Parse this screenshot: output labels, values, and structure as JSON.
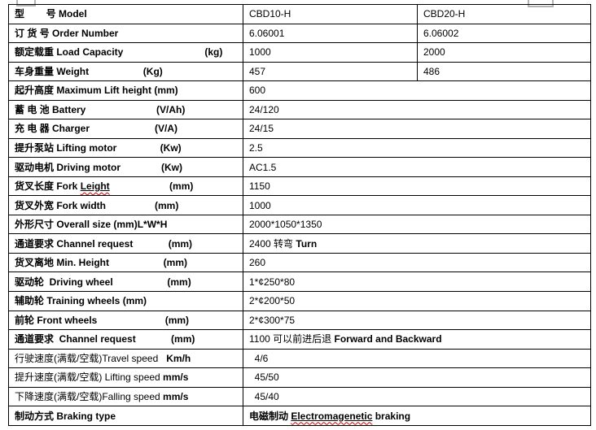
{
  "colors": {
    "background": "#ffffff",
    "table_border": "#000000",
    "text": "#000000",
    "spellcheck_underline": "#d40000",
    "fragment_gray": "#b3b3b3"
  },
  "table": {
    "rows": [
      {
        "id": "model",
        "label": [
          {
            "t": "型        号 Model",
            "b": true
          }
        ],
        "values": [
          [
            {
              "t": "CBD10-H"
            }
          ],
          [
            {
              "t": "CBD20-H"
            }
          ]
        ]
      },
      {
        "id": "order-number",
        "label": [
          {
            "t": "订 货 号 Order Number",
            "b": true
          }
        ],
        "values": [
          [
            {
              "t": "6.06001"
            }
          ],
          [
            {
              "t": "6.06002"
            }
          ]
        ]
      },
      {
        "id": "load-capacity",
        "label": [
          {
            "t": "额定载重 Load Capacity                              (kg)",
            "b": true
          }
        ],
        "values": [
          [
            {
              "t": "1000"
            }
          ],
          [
            {
              "t": "2000"
            }
          ]
        ]
      },
      {
        "id": "weight",
        "label": [
          {
            "t": "车身重量 Weight                    (Kg)",
            "b": true
          }
        ],
        "values": [
          [
            {
              "t": "457"
            }
          ],
          [
            {
              "t": "486"
            }
          ]
        ]
      },
      {
        "id": "max-lift-height",
        "label": [
          {
            "t": "起升高度 Maximum Lift height (mm)",
            "b": true
          }
        ],
        "values": [
          [
            {
              "t": "600"
            }
          ]
        ]
      },
      {
        "id": "battery",
        "label": [
          {
            "t": "蓄 电 池 Battery                          (V/Ah)",
            "b": true
          }
        ],
        "values": [
          [
            {
              "t": "24/120"
            }
          ]
        ]
      },
      {
        "id": "charger",
        "label": [
          {
            "t": "充 电 器 Charger                        (V/A)",
            "b": true
          }
        ],
        "values": [
          [
            {
              "t": "24/15"
            }
          ]
        ]
      },
      {
        "id": "lifting-motor",
        "label": [
          {
            "t": "提升泵站 Lifting motor                (Kw)",
            "b": true
          }
        ],
        "values": [
          [
            {
              "t": "2.5"
            }
          ]
        ]
      },
      {
        "id": "driving-motor",
        "label": [
          {
            "t": "驱动电机 Driving motor               (Kw)",
            "b": true
          }
        ],
        "values": [
          [
            {
              "t": "AC1.5"
            }
          ]
        ]
      },
      {
        "id": "fork-length",
        "label": [
          {
            "t": "货叉长度 Fork ",
            "b": true
          },
          {
            "t": "Leight",
            "b": true,
            "u": true,
            "sp": true
          },
          {
            "t": "                      (mm)",
            "b": true
          }
        ],
        "values": [
          [
            {
              "t": "1150"
            }
          ]
        ]
      },
      {
        "id": "fork-width",
        "label": [
          {
            "t": "货叉外宽 Fork width                  (mm)",
            "b": true
          }
        ],
        "values": [
          [
            {
              "t": "1000"
            }
          ]
        ]
      },
      {
        "id": "overall-size",
        "label": [
          {
            "t": "外形尺寸 Overall size (mm)L*W*H",
            "b": true
          }
        ],
        "values": [
          [
            {
              "t": "2000*1050*1350"
            }
          ]
        ]
      },
      {
        "id": "channel-request-turn",
        "label": [
          {
            "t": "通道要求 Channel request             (mm)",
            "b": true
          }
        ],
        "values": [
          [
            {
              "t": "2400 转弯 "
            },
            {
              "t": "Turn",
              "b": true
            }
          ]
        ]
      },
      {
        "id": "min-height",
        "label": [
          {
            "t": "货叉离地 Min. Height                    (mm)",
            "b": true
          }
        ],
        "values": [
          [
            {
              "t": "260"
            }
          ]
        ]
      },
      {
        "id": "driving-wheel",
        "label": [
          {
            "t": "驱动轮  Driving wheel                    (mm)",
            "b": true
          }
        ],
        "values": [
          [
            {
              "t": "1*¢250*80"
            }
          ]
        ]
      },
      {
        "id": "training-wheels",
        "label": [
          {
            "t": "辅助轮 Training wheels (mm)",
            "b": true
          }
        ],
        "values": [
          [
            {
              "t": "2*¢200*50"
            }
          ]
        ]
      },
      {
        "id": "front-wheels",
        "label": [
          {
            "t": "前轮 Front wheels                         (mm)",
            "b": true
          }
        ],
        "values": [
          [
            {
              "t": "2*¢300*75"
            }
          ]
        ]
      },
      {
        "id": "channel-request-straight",
        "label": [
          {
            "t": "通道要求  Channel request             (mm)",
            "b": true
          }
        ],
        "values": [
          [
            {
              "t": "1100 可以前进后退 "
            },
            {
              "t": "Forward and Backward",
              "b": true
            }
          ]
        ]
      },
      {
        "id": "travel-speed",
        "label": [
          {
            "t": "行驶速度(满载/空载)Travel speed   "
          },
          {
            "t": "Km/h",
            "b": true
          }
        ],
        "values": [
          [
            {
              "t": "  4/6"
            }
          ]
        ]
      },
      {
        "id": "lifting-speed",
        "label": [
          {
            "t": "提升速度(满载/空载) Lifting speed "
          },
          {
            "t": "mm/s",
            "b": true
          }
        ],
        "values": [
          [
            {
              "t": "  45/50"
            }
          ]
        ]
      },
      {
        "id": "falling-speed",
        "label": [
          {
            "t": "下降速度(满载/空载)Falling speed "
          },
          {
            "t": "mm/s",
            "b": true
          }
        ],
        "values": [
          [
            {
              "t": "  45/40"
            }
          ]
        ]
      },
      {
        "id": "braking-type",
        "label": [
          {
            "t": "制动方式 Braking type",
            "b": true
          }
        ],
        "values": [
          [
            {
              "t": "电磁制动 ",
              "b": true
            },
            {
              "t": "Electromagenetic",
              "b": true,
              "u": true,
              "sp": true
            },
            {
              "t": " braking",
              "b": true
            }
          ]
        ]
      }
    ]
  }
}
